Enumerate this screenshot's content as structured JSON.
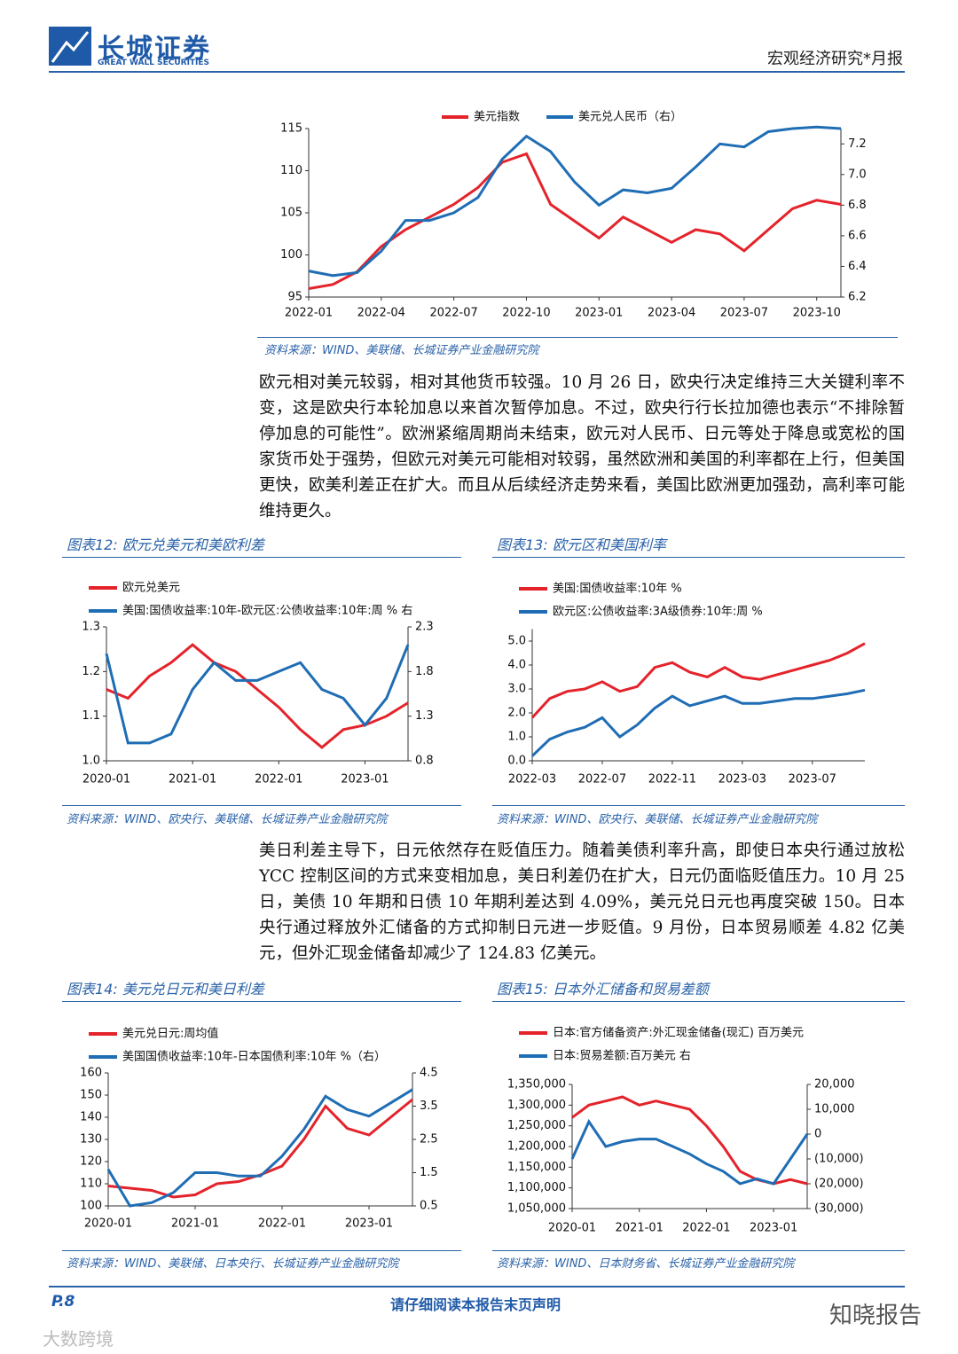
{
  "header": {
    "company": "长城证券",
    "company_en": "GREAT WALL SECURITIES",
    "report_type": "宏观经济研究*月报"
  },
  "paragraphs": [
    "欧元相对美元较弱，相对其他货币较强。10 月 26 日，欧央行决定维持三大关键利率不变，这是欧央行本轮加息以来首次暂停加息。不过，欧央行行长拉加德也表示“不排除暂停加息的可能性”。欧洲紧缩周期尚未结束，欧元对人民币、日元等处于降息或宽松的国家货币处于强势，但欧元对美元可能相对较弱，虽然欧洲和美国的利率都在上行，但美国更快，欧美利差正在扩大。而且从后续经济走势来看，美国比欧洲更加强劲，高利率可能维持更久。",
    "美日利差主导下，日元依然存在贬值压力。随着美债利率升高，即使日本央行通过放松 YCC 控制区间的方式来变相加息，美日利差仍在扩大，日元仍面临贬值压力。10 月 25 日，美债 10 年期和日债 10 年期利差达到 4.09%，美元兑日元也再度突破 150。日本央行通过释放外汇储备的方式抑制日元进一步贬值。9 月份，日本贸易顺差 4.82 亿美元，但外汇现金储备却减少了 124.83 亿美元。"
  ],
  "figures": [
    {
      "source": "资料来源：WIND、美联储、长城证券产业金融研究院"
    },
    {
      "caption": "图表12: 欧元兑美元和美欧利差",
      "source": "资料来源：WIND、欧央行、美联储、长城证券产业金融研究院"
    },
    {
      "caption": "图表13: 欧元区和美国利率",
      "source": "资料来源：WIND、欧央行、美联储、长城证券产业金融研究院"
    },
    {
      "caption": "图表14: 美元兑日元和美日利差",
      "source": "资料来源：WIND、美联储、日本央行、长城证券产业金融研究院"
    },
    {
      "caption": "图表15: 日本外汇储备和贸易差额",
      "source": "资料来源：WIND、日本财务省、长城证券产业金融研究院"
    }
  ],
  "footer": {
    "page": "P.8",
    "notice": "请仔细阅读本报告末页声明"
  },
  "watermarks": [
    "知晓报告",
    "大数跨境"
  ],
  "chart_data": [
    {
      "type": "line",
      "legend": "top",
      "categories": [
        "2022-01",
        null,
        null,
        "2022-04",
        null,
        null,
        "2022-07",
        null,
        null,
        "2022-10",
        null,
        null,
        "2023-01",
        null,
        null,
        "2023-04",
        null,
        null,
        "2023-07",
        null,
        null,
        "2023-10",
        null
      ],
      "series": [
        {
          "name": "美元指数",
          "color": "#e4232b",
          "values": [
            96,
            96.5,
            98,
            101,
            103,
            104.5,
            106,
            108,
            111,
            112,
            106,
            104,
            102,
            104.5,
            103,
            101.5,
            103,
            102.5,
            100.5,
            103,
            105.5,
            106.5,
            106
          ]
        },
        {
          "name": "美元兑人民币（右）",
          "color": "#1f6db4",
          "axis": "y2",
          "values": [
            6.37,
            6.34,
            6.36,
            6.5,
            6.7,
            6.7,
            6.75,
            6.85,
            7.1,
            7.25,
            7.15,
            6.95,
            6.8,
            6.9,
            6.88,
            6.91,
            7.05,
            7.2,
            7.18,
            7.28,
            7.3,
            7.31,
            7.3
          ]
        }
      ],
      "ylim": [
        95,
        115
      ],
      "yticks": [
        95,
        100,
        105,
        110,
        115
      ],
      "y2lim": [
        6.2,
        7.3
      ],
      "y2ticks": [
        6.2,
        6.4,
        6.6,
        6.8,
        {
          "value": 7,
          "label": "7.0"
        },
        7.2
      ]
    },
    {
      "type": "line",
      "legend": "top-left",
      "categories": [
        "2020-01",
        null,
        null,
        null,
        "2021-01",
        null,
        null,
        null,
        "2022-01",
        null,
        null,
        null,
        "2023-01",
        null,
        null
      ],
      "series": [
        {
          "name": "欧元兑美元",
          "color": "#e4232b",
          "values": [
            1.16,
            1.14,
            1.19,
            1.22,
            1.26,
            1.22,
            1.2,
            1.16,
            1.12,
            1.07,
            1.03,
            1.07,
            1.08,
            1.1,
            1.13
          ]
        },
        {
          "name": "美国:国债收益率:10年-欧元区:公债收益率:10年:周 % 右",
          "color": "#1f6db4",
          "axis": "y2",
          "values": [
            2.0,
            1.0,
            1.0,
            1.1,
            1.6,
            1.9,
            1.7,
            1.7,
            1.8,
            1.9,
            1.6,
            1.5,
            1.2,
            1.5,
            2.1
          ]
        }
      ],
      "ylim": [
        1.0,
        1.3
      ],
      "yticks": [
        {
          "value": 1.0,
          "label": "1.0"
        },
        1.1,
        1.2,
        1.3
      ],
      "y2lim": [
        0.8,
        2.3
      ],
      "y2ticks": [
        0.8,
        1.3,
        1.8,
        2.3
      ]
    },
    {
      "type": "line",
      "legend": "top-left",
      "categories": [
        "2022-03",
        null,
        null,
        null,
        "2022-07",
        null,
        null,
        null,
        "2022-11",
        null,
        null,
        null,
        "2023-03",
        null,
        null,
        null,
        "2023-07",
        null,
        null,
        null
      ],
      "series": [
        {
          "name": "美国:国债收益率:10年 %",
          "color": "#e4232b",
          "values": [
            1.8,
            2.6,
            2.9,
            3.0,
            3.3,
            2.9,
            3.1,
            3.9,
            4.1,
            3.7,
            3.5,
            3.9,
            3.5,
            3.4,
            3.6,
            3.8,
            4.0,
            4.2,
            4.5,
            4.9
          ]
        },
        {
          "name": "欧元区:公债收益率:3A级债券:10年:周 %",
          "color": "#1f6db4",
          "values": [
            0.2,
            0.9,
            1.2,
            1.4,
            1.8,
            1.0,
            1.5,
            2.2,
            2.7,
            2.3,
            2.5,
            2.7,
            2.4,
            2.4,
            2.5,
            2.6,
            2.6,
            2.7,
            2.8,
            2.95
          ]
        }
      ],
      "ylim": [
        0,
        5.5
      ],
      "yticks": [
        {
          "value": 0,
          "label": "0.0"
        },
        {
          "value": 1,
          "label": "1.0"
        },
        {
          "value": 2,
          "label": "2.0"
        },
        {
          "value": 3,
          "label": "3.0"
        },
        {
          "value": 4,
          "label": "4.0"
        },
        {
          "value": 5,
          "label": "5.0"
        }
      ]
    },
    {
      "type": "line",
      "legend": "top-left",
      "categories": [
        "2020-01",
        null,
        null,
        null,
        "2021-01",
        null,
        null,
        null,
        "2022-01",
        null,
        null,
        null,
        "2023-01",
        null,
        null
      ],
      "series": [
        {
          "name": "美元兑日元:周均值",
          "color": "#e4232b",
          "values": [
            109,
            108,
            107,
            104,
            105,
            110,
            111,
            114,
            118,
            130,
            145,
            135,
            132,
            140,
            148
          ]
        },
        {
          "name": "美国国债收益率:10年-日本国债利率:10年 %（右）",
          "color": "#1f6db4",
          "axis": "y2",
          "values": [
            1.6,
            0.5,
            0.6,
            0.9,
            1.5,
            1.5,
            1.4,
            1.4,
            2.0,
            2.8,
            3.8,
            3.4,
            3.2,
            3.6,
            4.0
          ]
        }
      ],
      "ylim": [
        100,
        160
      ],
      "yticks": [
        100,
        110,
        120,
        130,
        140,
        150,
        160
      ],
      "y2lim": [
        0.5,
        4.5
      ],
      "y2ticks": [
        0.5,
        1.5,
        2.5,
        3.5,
        4.5
      ]
    },
    {
      "type": "line",
      "legend": "top-left",
      "negative_tick_color": "#c00000",
      "categories": [
        "2020-01",
        null,
        null,
        null,
        "2021-01",
        null,
        null,
        null,
        "2022-01",
        null,
        null,
        null,
        "2023-01",
        null,
        null
      ],
      "series": [
        {
          "name": "日本:官方储备资产:外汇现金储备(现汇) 百万美元",
          "color": "#e4232b",
          "values": [
            1270000,
            1300000,
            1310000,
            1320000,
            1300000,
            1310000,
            1300000,
            1290000,
            1250000,
            1200000,
            1140000,
            1120000,
            1110000,
            1120000,
            1110000
          ]
        },
        {
          "name": "日本:贸易差额:百万美元 右",
          "color": "#1f6db4",
          "axis": "y2",
          "values": [
            -10000,
            5000,
            -5000,
            -3000,
            -2000,
            -2000,
            -5000,
            -8000,
            -12000,
            -15000,
            -20000,
            -18000,
            -20000,
            -10000,
            0
          ]
        }
      ],
      "ylim": [
        1050000,
        1350000
      ],
      "yticks": [
        {
          "value": 1050000,
          "label": "1,050,000"
        },
        {
          "value": 1100000,
          "label": "1,100,000"
        },
        {
          "value": 1150000,
          "label": "1,150,000"
        },
        {
          "value": 1200000,
          "label": "1,200,000"
        },
        {
          "value": 1250000,
          "label": "1,250,000"
        },
        {
          "value": 1300000,
          "label": "1,300,000"
        },
        {
          "value": 1350000,
          "label": "1,350,000"
        }
      ],
      "y2lim": [
        -30000,
        20000
      ],
      "y2ticks": [
        {
          "value": -30000,
          "label": "(30,000)"
        },
        {
          "value": -20000,
          "label": "(20,000)"
        },
        {
          "value": -10000,
          "label": "(10,000)"
        },
        0,
        {
          "value": 10000,
          "label": "10,000"
        },
        {
          "value": 20000,
          "label": "20,000"
        }
      ]
    }
  ]
}
